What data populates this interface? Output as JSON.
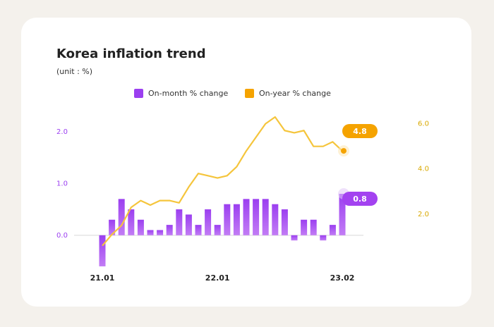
{
  "chart_data": {
    "type": "bar-line",
    "title": "Korea inflation trend",
    "subtitle": "(unit : %)",
    "categories": [
      "21.01",
      null,
      null,
      null,
      null,
      null,
      null,
      null,
      null,
      null,
      null,
      null,
      "22.01",
      null,
      null,
      null,
      null,
      null,
      null,
      null,
      null,
      null,
      null,
      null,
      null,
      "23.02"
    ],
    "series": [
      {
        "name": "On-month % change",
        "type": "bar",
        "axis": "y",
        "color": "#9b3ff0",
        "values": [
          -0.6,
          0.3,
          0.7,
          0.5,
          0.3,
          0.1,
          0.1,
          0.2,
          0.5,
          0.4,
          0.2,
          0.5,
          0.2,
          0.6,
          0.6,
          0.7,
          0.7,
          0.7,
          0.6,
          0.5,
          -0.1,
          0.3,
          0.3,
          -0.1,
          0.2,
          0.8
        ]
      },
      {
        "name": "On-year % change",
        "type": "line",
        "axis": "y2",
        "color": "#f5c53c",
        "values": [
          0.6,
          1.1,
          1.5,
          2.3,
          2.6,
          2.4,
          2.6,
          2.6,
          2.5,
          3.2,
          3.8,
          3.7,
          3.6,
          3.7,
          4.1,
          4.8,
          5.4,
          6.0,
          6.3,
          5.7,
          5.6,
          5.7,
          5.0,
          5.0,
          5.2,
          4.8
        ]
      }
    ],
    "ylim": [
      -0.9,
      2.5
    ],
    "yticks": [
      {
        "value": 0,
        "label": "0.0"
      },
      {
        "value": 1,
        "label": "1.0"
      },
      {
        "value": 2,
        "label": "2.0"
      }
    ],
    "y2lim": [
      -1,
      6.8
    ],
    "y2ticks": [
      {
        "value": 2,
        "label": "2.0"
      },
      {
        "value": 4,
        "label": "4.0"
      },
      {
        "value": 6,
        "label": "6.0"
      }
    ]
  }
}
